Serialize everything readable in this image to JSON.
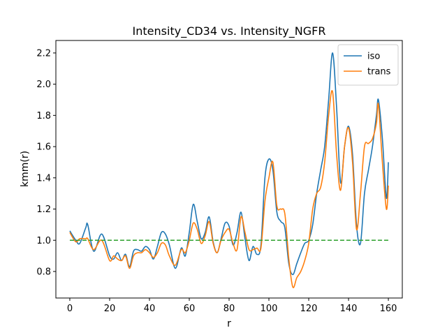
{
  "chart_data": {
    "type": "line",
    "title": "Intensity_CD34 vs. Intensity_NGFR",
    "xlabel": "r",
    "ylabel": "kmm(r)",
    "xlim": [
      -7,
      167
    ],
    "ylim": [
      0.63,
      2.28
    ],
    "xticks": [
      0,
      20,
      40,
      60,
      80,
      100,
      120,
      140,
      160
    ],
    "yticks": [
      0.8,
      1.0,
      1.2,
      1.4,
      1.6,
      1.8,
      2.0,
      2.2
    ],
    "xtick_labels": [
      "0",
      "20",
      "40",
      "60",
      "80",
      "100",
      "120",
      "140",
      "160"
    ],
    "ytick_labels": [
      "0.8",
      "1.0",
      "1.2",
      "1.4",
      "1.6",
      "1.8",
      "2.0",
      "2.2"
    ],
    "grid": false,
    "legend": "top-right",
    "series": [
      {
        "name": "iso",
        "color": "#1f77b4",
        "x": [
          0,
          3,
          5,
          8,
          9,
          12,
          16,
          20,
          22,
          24,
          26,
          28,
          30,
          32,
          34,
          36,
          38,
          40,
          42,
          44,
          46,
          48,
          50,
          53,
          56,
          58,
          60,
          62,
          64,
          66,
          68,
          70,
          72,
          74,
          76,
          78,
          80,
          82,
          84,
          86,
          88,
          90,
          92,
          94,
          96,
          98,
          100,
          102,
          104,
          106,
          108,
          110,
          112,
          114,
          116,
          118,
          120,
          122,
          124,
          126,
          128,
          130,
          132,
          134,
          136,
          138,
          140,
          142,
          144,
          146,
          148,
          150,
          152,
          154,
          155,
          157,
          159,
          160
        ],
        "y": [
          1.06,
          1.0,
          0.98,
          1.08,
          1.1,
          0.93,
          1.04,
          0.9,
          0.88,
          0.92,
          0.87,
          0.91,
          0.83,
          0.93,
          0.94,
          0.93,
          0.96,
          0.94,
          0.88,
          0.96,
          1.05,
          1.04,
          0.97,
          0.82,
          0.95,
          0.9,
          1.05,
          1.23,
          1.12,
          1.01,
          1.05,
          1.15,
          0.99,
          0.92,
          1.01,
          1.11,
          1.09,
          0.97,
          1.05,
          1.18,
          1.01,
          0.87,
          0.96,
          0.91,
          0.97,
          1.4,
          1.52,
          1.45,
          1.18,
          1.12,
          1.08,
          0.85,
          0.78,
          0.85,
          0.92,
          0.98,
          1.0,
          1.1,
          1.3,
          1.45,
          1.6,
          1.9,
          2.2,
          1.85,
          1.37,
          1.6,
          1.73,
          1.55,
          1.1,
          0.98,
          1.3,
          1.45,
          1.6,
          1.8,
          1.9,
          1.65,
          1.27,
          1.5
        ]
      },
      {
        "name": "trans",
        "color": "#ff7f0e",
        "x": [
          0,
          3,
          5,
          8,
          9,
          12,
          16,
          20,
          22,
          24,
          26,
          28,
          30,
          32,
          34,
          36,
          38,
          40,
          42,
          44,
          46,
          48,
          50,
          53,
          56,
          58,
          60,
          62,
          64,
          66,
          68,
          70,
          72,
          74,
          76,
          78,
          80,
          82,
          84,
          86,
          88,
          90,
          92,
          94,
          96,
          98,
          100,
          102,
          104,
          106,
          108,
          110,
          112,
          114,
          116,
          118,
          120,
          122,
          124,
          126,
          128,
          130,
          132,
          134,
          136,
          138,
          140,
          142,
          144,
          146,
          148,
          150,
          152,
          154,
          155,
          157,
          159,
          160
        ],
        "y": [
          1.05,
          0.99,
          1.01,
          1.01,
          1.01,
          0.94,
          1.0,
          0.87,
          0.9,
          0.88,
          0.87,
          0.9,
          0.82,
          0.9,
          0.92,
          0.92,
          0.94,
          0.92,
          0.89,
          0.92,
          0.98,
          0.97,
          0.9,
          0.84,
          0.94,
          0.92,
          1.0,
          1.11,
          1.07,
          0.98,
          1.03,
          1.12,
          0.98,
          0.92,
          1.0,
          1.05,
          1.07,
          0.98,
          0.94,
          1.15,
          1.05,
          0.94,
          0.94,
          0.95,
          0.95,
          1.25,
          1.4,
          1.5,
          1.22,
          1.2,
          1.17,
          0.88,
          0.7,
          0.76,
          0.8,
          0.87,
          0.98,
          1.2,
          1.3,
          1.34,
          1.5,
          1.8,
          1.95,
          1.55,
          1.32,
          1.6,
          1.72,
          1.5,
          1.07,
          1.3,
          1.6,
          1.62,
          1.65,
          1.75,
          1.87,
          1.5,
          1.2,
          1.35
        ]
      },
      {
        "name": "",
        "color": "#2ca02c",
        "dashed": true,
        "x": [
          0,
          160
        ],
        "y": [
          1.0,
          1.0
        ]
      }
    ]
  }
}
